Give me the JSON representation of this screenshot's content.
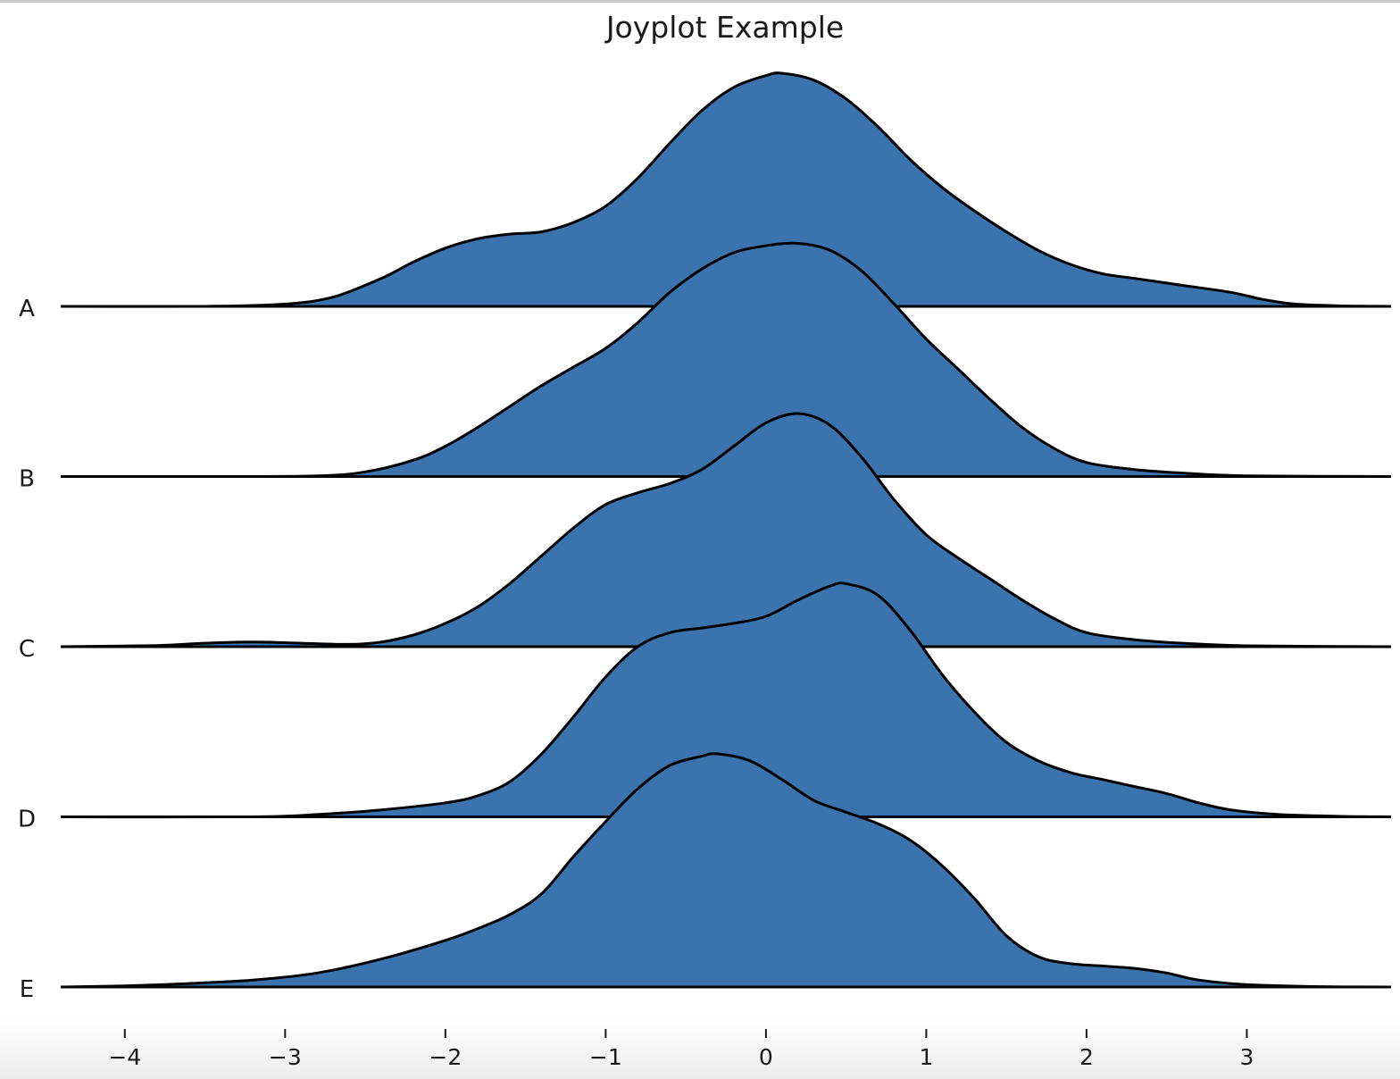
{
  "chart_data": {
    "type": "area",
    "title": "Joyplot Example",
    "xlabel": "",
    "ylabel": "",
    "xlim": [
      -4.4,
      3.9
    ],
    "x_ticks": [
      -4,
      -3,
      -2,
      -1,
      0,
      1,
      2,
      3
    ],
    "x_tick_labels": [
      "−4",
      "−3",
      "−2",
      "−1",
      "0",
      "1",
      "2",
      "3"
    ],
    "grid": false,
    "legend": "none",
    "fill_color": "#3b73ae",
    "edge_color": "#000000",
    "categories": [
      "A",
      "B",
      "C",
      "D",
      "E"
    ],
    "series": [
      {
        "label": "A",
        "points": [
          [
            -4.4,
            0
          ],
          [
            -3.5,
            0
          ],
          [
            -3.0,
            0.01
          ],
          [
            -2.7,
            0.04
          ],
          [
            -2.4,
            0.12
          ],
          [
            -2.2,
            0.19
          ],
          [
            -2.0,
            0.25
          ],
          [
            -1.8,
            0.29
          ],
          [
            -1.6,
            0.31
          ],
          [
            -1.4,
            0.32
          ],
          [
            -1.2,
            0.36
          ],
          [
            -1.0,
            0.43
          ],
          [
            -0.8,
            0.55
          ],
          [
            -0.6,
            0.7
          ],
          [
            -0.4,
            0.84
          ],
          [
            -0.2,
            0.94
          ],
          [
            0.0,
            0.99
          ],
          [
            0.1,
            1.0
          ],
          [
            0.3,
            0.97
          ],
          [
            0.5,
            0.89
          ],
          [
            0.7,
            0.77
          ],
          [
            0.9,
            0.63
          ],
          [
            1.1,
            0.51
          ],
          [
            1.3,
            0.41
          ],
          [
            1.5,
            0.32
          ],
          [
            1.7,
            0.24
          ],
          [
            1.9,
            0.18
          ],
          [
            2.1,
            0.14
          ],
          [
            2.3,
            0.12
          ],
          [
            2.6,
            0.09
          ],
          [
            2.9,
            0.06
          ],
          [
            3.1,
            0.03
          ],
          [
            3.3,
            0.01
          ],
          [
            3.6,
            0.002
          ],
          [
            3.9,
            0
          ]
        ]
      },
      {
        "label": "B",
        "points": [
          [
            -4.4,
            0
          ],
          [
            -3.5,
            0
          ],
          [
            -2.8,
            0.003
          ],
          [
            -2.5,
            0.02
          ],
          [
            -2.2,
            0.07
          ],
          [
            -2.0,
            0.13
          ],
          [
            -1.8,
            0.21
          ],
          [
            -1.6,
            0.3
          ],
          [
            -1.4,
            0.39
          ],
          [
            -1.2,
            0.47
          ],
          [
            -1.0,
            0.55
          ],
          [
            -0.8,
            0.66
          ],
          [
            -0.6,
            0.79
          ],
          [
            -0.4,
            0.89
          ],
          [
            -0.2,
            0.96
          ],
          [
            0.0,
            0.99
          ],
          [
            0.2,
            1.0
          ],
          [
            0.4,
            0.97
          ],
          [
            0.6,
            0.88
          ],
          [
            0.8,
            0.74
          ],
          [
            1.0,
            0.59
          ],
          [
            1.2,
            0.46
          ],
          [
            1.4,
            0.33
          ],
          [
            1.6,
            0.21
          ],
          [
            1.8,
            0.12
          ],
          [
            2.0,
            0.06
          ],
          [
            2.3,
            0.03
          ],
          [
            2.6,
            0.015
          ],
          [
            3.0,
            0.003
          ],
          [
            3.9,
            0
          ]
        ]
      },
      {
        "label": "C",
        "points": [
          [
            -4.4,
            0
          ],
          [
            -3.8,
            0.005
          ],
          [
            -3.5,
            0.015
          ],
          [
            -3.2,
            0.02
          ],
          [
            -2.9,
            0.015
          ],
          [
            -2.6,
            0.01
          ],
          [
            -2.4,
            0.02
          ],
          [
            -2.2,
            0.05
          ],
          [
            -2.0,
            0.1
          ],
          [
            -1.8,
            0.17
          ],
          [
            -1.6,
            0.27
          ],
          [
            -1.4,
            0.39
          ],
          [
            -1.2,
            0.51
          ],
          [
            -1.0,
            0.61
          ],
          [
            -0.8,
            0.66
          ],
          [
            -0.6,
            0.7
          ],
          [
            -0.4,
            0.76
          ],
          [
            -0.2,
            0.86
          ],
          [
            0.0,
            0.96
          ],
          [
            0.2,
            1.0
          ],
          [
            0.4,
            0.95
          ],
          [
            0.6,
            0.81
          ],
          [
            0.8,
            0.63
          ],
          [
            1.0,
            0.48
          ],
          [
            1.2,
            0.38
          ],
          [
            1.4,
            0.29
          ],
          [
            1.6,
            0.2
          ],
          [
            1.8,
            0.12
          ],
          [
            2.0,
            0.06
          ],
          [
            2.3,
            0.03
          ],
          [
            2.6,
            0.015
          ],
          [
            3.0,
            0.004
          ],
          [
            3.9,
            0
          ]
        ]
      },
      {
        "label": "D",
        "points": [
          [
            -4.4,
            0
          ],
          [
            -3.2,
            0
          ],
          [
            -2.8,
            0.01
          ],
          [
            -2.4,
            0.03
          ],
          [
            -2.0,
            0.06
          ],
          [
            -1.8,
            0.09
          ],
          [
            -1.6,
            0.15
          ],
          [
            -1.4,
            0.27
          ],
          [
            -1.2,
            0.43
          ],
          [
            -1.0,
            0.6
          ],
          [
            -0.8,
            0.73
          ],
          [
            -0.6,
            0.79
          ],
          [
            -0.4,
            0.81
          ],
          [
            -0.2,
            0.83
          ],
          [
            0.0,
            0.86
          ],
          [
            0.2,
            0.93
          ],
          [
            0.4,
            0.99
          ],
          [
            0.5,
            1.0
          ],
          [
            0.7,
            0.95
          ],
          [
            0.9,
            0.8
          ],
          [
            1.1,
            0.61
          ],
          [
            1.3,
            0.45
          ],
          [
            1.5,
            0.32
          ],
          [
            1.7,
            0.24
          ],
          [
            1.9,
            0.19
          ],
          [
            2.1,
            0.16
          ],
          [
            2.3,
            0.13
          ],
          [
            2.5,
            0.1
          ],
          [
            2.7,
            0.06
          ],
          [
            2.9,
            0.03
          ],
          [
            3.2,
            0.01
          ],
          [
            3.6,
            0.002
          ],
          [
            3.9,
            0
          ]
        ]
      },
      {
        "label": "E",
        "points": [
          [
            -4.4,
            0
          ],
          [
            -4.0,
            0.005
          ],
          [
            -3.6,
            0.015
          ],
          [
            -3.2,
            0.03
          ],
          [
            -2.8,
            0.06
          ],
          [
            -2.4,
            0.12
          ],
          [
            -2.0,
            0.2
          ],
          [
            -1.8,
            0.25
          ],
          [
            -1.6,
            0.31
          ],
          [
            -1.4,
            0.4
          ],
          [
            -1.2,
            0.56
          ],
          [
            -1.0,
            0.71
          ],
          [
            -0.8,
            0.85
          ],
          [
            -0.6,
            0.95
          ],
          [
            -0.4,
            0.99
          ],
          [
            -0.3,
            1.0
          ],
          [
            -0.1,
            0.97
          ],
          [
            0.1,
            0.89
          ],
          [
            0.3,
            0.8
          ],
          [
            0.5,
            0.75
          ],
          [
            0.7,
            0.7
          ],
          [
            0.9,
            0.63
          ],
          [
            1.1,
            0.52
          ],
          [
            1.3,
            0.38
          ],
          [
            1.5,
            0.22
          ],
          [
            1.7,
            0.13
          ],
          [
            1.9,
            0.1
          ],
          [
            2.1,
            0.09
          ],
          [
            2.3,
            0.08
          ],
          [
            2.5,
            0.06
          ],
          [
            2.7,
            0.03
          ],
          [
            3.0,
            0.01
          ],
          [
            3.4,
            0.002
          ],
          [
            3.9,
            0
          ]
        ]
      }
    ]
  }
}
